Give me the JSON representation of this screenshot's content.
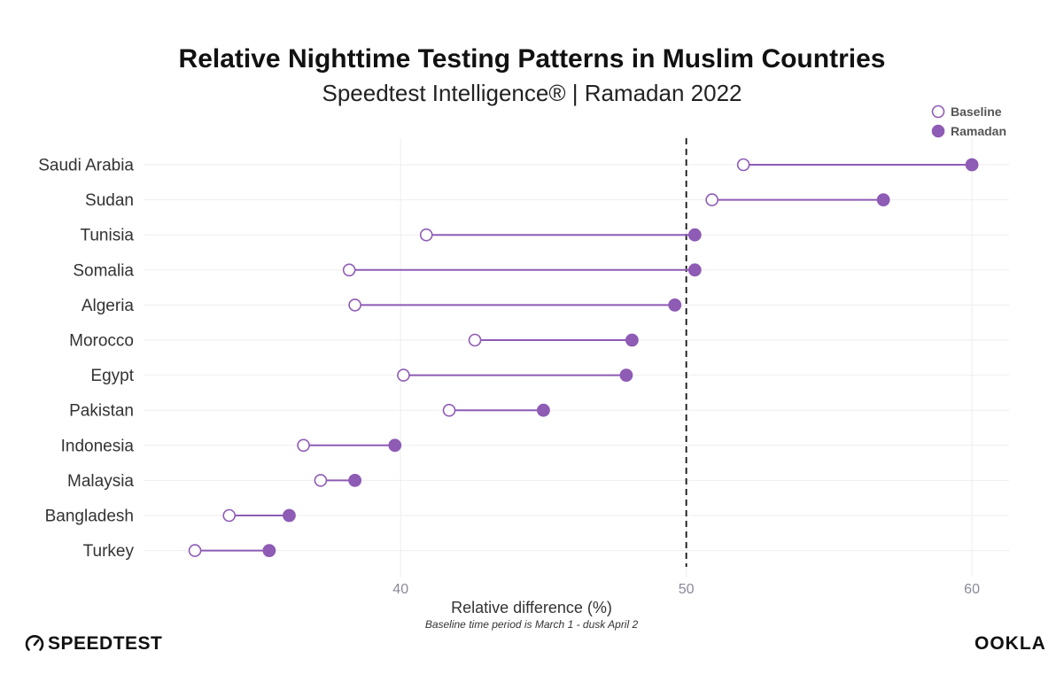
{
  "colors": {
    "accent": "#8e5bb5",
    "grid": "#eeeeee",
    "dash": "#111111"
  },
  "brand": {
    "left_logo": "SPEEDTEST",
    "right_logo": "OOKLA"
  },
  "chart_data": {
    "type": "dumbbell",
    "title": "Relative Nighttime Testing Patterns in Muslim Countries",
    "subtitle": "Speedtest Intelligence® | Ramadan 2022",
    "xlabel": "Relative difference (%)",
    "note": "Baseline time period is March 1 - dusk April 2",
    "xlim": [
      31,
      61.3
    ],
    "xticks": [
      40,
      50,
      60
    ],
    "reference_line": 50,
    "legend": [
      "Baseline",
      "Ramadan"
    ],
    "categories": [
      "Saudi Arabia",
      "Sudan",
      "Tunisia",
      "Somalia",
      "Algeria",
      "Morocco",
      "Egypt",
      "Pakistan",
      "Indonesia",
      "Malaysia",
      "Bangladesh",
      "Turkey"
    ],
    "series": [
      {
        "name": "Baseline",
        "values": [
          52.0,
          50.9,
          40.9,
          38.2,
          38.4,
          42.6,
          40.1,
          41.7,
          36.6,
          37.2,
          34.0,
          32.8
        ]
      },
      {
        "name": "Ramadan",
        "values": [
          60.0,
          56.9,
          50.3,
          50.3,
          49.6,
          48.1,
          47.9,
          45.0,
          39.8,
          38.4,
          36.1,
          35.4
        ]
      }
    ]
  }
}
